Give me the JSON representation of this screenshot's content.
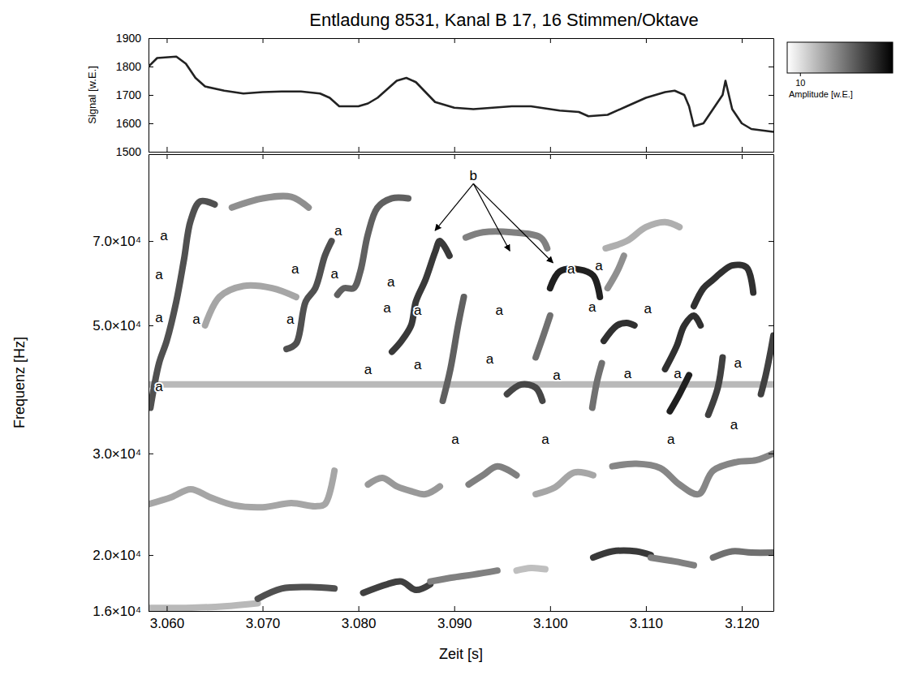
{
  "chart_data": [
    {
      "type": "line",
      "title": "Entladung 8531, Kanal B 17, 16 Stimmen/Oktave",
      "ylabel": "Signal [w.E.]",
      "xlim": [
        3.0581,
        3.1233
      ],
      "ylim": [
        1500,
        1900
      ],
      "xticks": [
        3.06,
        3.07,
        3.08,
        3.09,
        3.1,
        3.11,
        3.12
      ],
      "yticks": [
        1500,
        1600,
        1700,
        1800,
        1900
      ],
      "tick_labels": "y",
      "color": "#222222",
      "x": [
        3.0581,
        3.059,
        3.061,
        3.062,
        3.063,
        3.064,
        3.066,
        3.068,
        3.07,
        3.072,
        3.074,
        3.076,
        3.077,
        3.078,
        3.08,
        3.081,
        3.082,
        3.083,
        3.084,
        3.085,
        3.086,
        3.087,
        3.088,
        3.09,
        3.092,
        3.094,
        3.096,
        3.098,
        3.1,
        3.101,
        3.103,
        3.104,
        3.106,
        3.108,
        3.11,
        3.112,
        3.113,
        3.114,
        3.1145,
        3.115,
        3.116,
        3.117,
        3.118,
        3.1183,
        3.119,
        3.12,
        3.121,
        3.1233
      ],
      "values": [
        1800,
        1830,
        1835,
        1810,
        1760,
        1730,
        1715,
        1705,
        1710,
        1712,
        1712,
        1705,
        1690,
        1660,
        1660,
        1670,
        1690,
        1720,
        1750,
        1760,
        1745,
        1710,
        1675,
        1655,
        1650,
        1655,
        1660,
        1660,
        1650,
        1645,
        1640,
        1625,
        1630,
        1660,
        1690,
        1710,
        1715,
        1700,
        1660,
        1590,
        1600,
        1650,
        1700,
        1750,
        1650,
        1600,
        1580,
        1570
      ]
    },
    {
      "type": "spectrogram",
      "xlabel": "Zeit [s]",
      "ylabel": "Frequenz [Hz]",
      "log": "y",
      "xlim": [
        3.0581,
        3.1233
      ],
      "ylim": [
        16000,
        99000
      ],
      "xticks": [
        {
          "value": 3.06,
          "label": "3.060"
        },
        {
          "value": 3.07,
          "label": "3.070"
        },
        {
          "value": 3.08,
          "label": "3.080"
        },
        {
          "value": 3.09,
          "label": "3.090"
        },
        {
          "value": 3.1,
          "label": "3.100"
        },
        {
          "value": 3.11,
          "label": "3.110"
        },
        {
          "value": 3.12,
          "label": "3.120"
        }
      ],
      "yticks": [
        {
          "value": 16000,
          "label": "1.6×10⁴"
        },
        {
          "value": 20000,
          "label": "2.0×10⁴"
        },
        {
          "value": 30000,
          "label": "3.0×10⁴"
        },
        {
          "value": 50000,
          "label": "5.0×10⁴"
        },
        {
          "value": 70000,
          "label": "7.0×10⁴"
        }
      ],
      "colorbar_range": [
        0,
        80
      ],
      "colorbar_ticks": [
        10
      ],
      "colorbar_label": "Amplitude [w.E.]",
      "tracks": [
        {
          "t": [
            3.0581,
            3.1233
          ],
          "f": [
            39500,
            39500
          ],
          "amplitude": 22
        },
        {
          "t": [
            3.0581,
            3.062,
            3.066,
            3.0695
          ],
          "f": [
            16200,
            16200,
            16300,
            16500
          ],
          "amplitude": 22
        },
        {
          "t": [
            3.0695,
            3.072,
            3.075,
            3.0775
          ],
          "f": [
            16800,
            17500,
            17600,
            17500
          ],
          "amplitude": 55
        },
        {
          "t": [
            3.0805,
            3.083,
            3.0845,
            3.086,
            3.0875
          ],
          "f": [
            17200,
            17800,
            18000,
            17400,
            17800
          ],
          "amplitude": 60
        },
        {
          "t": [
            3.0875,
            3.09,
            3.092,
            3.0945
          ],
          "f": [
            18000,
            18300,
            18500,
            18800
          ],
          "amplitude": 40
        },
        {
          "t": [
            3.0965,
            3.098,
            3.0995
          ],
          "f": [
            18800,
            19000,
            18900
          ],
          "amplitude": 20
        },
        {
          "t": [
            3.1045,
            3.1065,
            3.109,
            3.1105
          ],
          "f": [
            19800,
            20300,
            20300,
            20000
          ],
          "amplitude": 62
        },
        {
          "t": [
            3.1105,
            3.113,
            3.115
          ],
          "f": [
            19800,
            19500,
            19200
          ],
          "amplitude": 40
        },
        {
          "t": [
            3.117,
            3.119,
            3.121,
            3.1233
          ],
          "f": [
            19800,
            20300,
            20200,
            20200
          ],
          "amplitude": 45
        },
        {
          "t": [
            3.0581,
            3.0605,
            3.0625,
            3.0645,
            3.067,
            3.07,
            3.073,
            3.0755,
            3.0765,
            3.0775
          ],
          "f": [
            24500,
            25200,
            26000,
            25200,
            24400,
            24200,
            24600,
            24300,
            24500,
            28000
          ],
          "amplitude": 28
        },
        {
          "t": [
            3.081,
            3.0825,
            3.084,
            3.0855,
            3.087,
            3.0885
          ],
          "f": [
            26500,
            27200,
            26300,
            25800,
            25500,
            26300
          ],
          "amplitude": 32
        },
        {
          "t": [
            3.0915,
            3.093,
            3.0945,
            3.0965
          ],
          "f": [
            26500,
            27500,
            28500,
            27500
          ],
          "amplitude": 40
        },
        {
          "t": [
            3.0985,
            3.1005,
            3.1025,
            3.1045
          ],
          "f": [
            25500,
            26200,
            27800,
            27500
          ],
          "amplitude": 28
        },
        {
          "t": [
            3.1065,
            3.109,
            3.1115,
            3.1135,
            3.1155,
            3.117,
            3.1195,
            3.1215,
            3.1233
          ],
          "f": [
            28500,
            28800,
            28300,
            26500,
            25500,
            28000,
            29000,
            29200,
            30000
          ],
          "amplitude": 38
        },
        {
          "t": [
            3.0583,
            3.0592,
            3.06,
            3.061,
            3.0618,
            3.0625,
            3.0635,
            3.065
          ],
          "f": [
            36000,
            43000,
            47000,
            55000,
            65000,
            76000,
            82000,
            81000
          ],
          "amplitude": 55
        },
        {
          "t": [
            3.0668,
            3.07,
            3.073,
            3.0748
          ],
          "f": [
            80000,
            83000,
            83500,
            80000
          ],
          "amplitude": 35
        },
        {
          "t": [
            3.064,
            3.0655,
            3.068,
            3.071,
            3.0735
          ],
          "f": [
            50000,
            56000,
            58500,
            58000,
            56000
          ],
          "amplitude": 28
        },
        {
          "t": [
            3.0725,
            3.0735,
            3.0745,
            3.0755,
            3.0765,
            3.0772
          ],
          "f": [
            45500,
            46500,
            55000,
            58000,
            66000,
            70000
          ],
          "amplitude": 55
        },
        {
          "t": [
            3.0778,
            3.0785,
            3.0795,
            3.0802,
            3.081,
            3.082,
            3.0835,
            3.0852
          ],
          "f": [
            56500,
            58000,
            58000,
            62000,
            72000,
            80000,
            83000,
            83000
          ],
          "amplitude": 50
        },
        {
          "t": [
            3.0835,
            3.0845,
            3.0855,
            3.086,
            3.087,
            3.088,
            3.0885,
            3.0895
          ],
          "f": [
            45000,
            47000,
            50000,
            55000,
            60000,
            67000,
            70000,
            66000
          ],
          "amplitude": 62
        },
        {
          "t": [
            3.0888,
            3.0896,
            3.0904,
            3.091
          ],
          "f": [
            37000,
            42000,
            50000,
            56000
          ],
          "amplitude": 50
        },
        {
          "t": [
            3.0912,
            3.093,
            3.096,
            3.099,
            3.0997
          ],
          "f": [
            71000,
            72500,
            72500,
            71000,
            68000
          ],
          "amplitude": 40
        },
        {
          "t": [
            3.0955,
            3.097,
            3.0985,
            3.0992
          ],
          "f": [
            38000,
            39500,
            39000,
            37000
          ],
          "amplitude": 58
        },
        {
          "t": [
            3.0985,
            3.0993,
            3.1
          ],
          "f": [
            44000,
            48000,
            52000
          ],
          "amplitude": 45
        },
        {
          "t": [
            3.1,
            3.101,
            3.103,
            3.1045,
            3.1052
          ],
          "f": [
            58000,
            62000,
            62500,
            61000,
            56000
          ],
          "amplitude": 70
        },
        {
          "t": [
            3.1044,
            3.1049,
            3.1054
          ],
          "f": [
            36000,
            40000,
            43000
          ],
          "amplitude": 45
        },
        {
          "t": [
            3.1056,
            3.107,
            3.108,
            3.1088
          ],
          "f": [
            47000,
            50000,
            50500,
            50000
          ],
          "amplitude": 65
        },
        {
          "t": [
            3.1058,
            3.108,
            3.11,
            3.112,
            3.1135
          ],
          "f": [
            68000,
            70000,
            74000,
            75500,
            74000
          ],
          "amplitude": 25
        },
        {
          "t": [
            3.106,
            3.107,
            3.1077
          ],
          "f": [
            58000,
            62000,
            66000
          ],
          "amplitude": 35
        },
        {
          "t": [
            3.112,
            3.1132,
            3.114,
            3.115,
            3.1157
          ],
          "f": [
            42000,
            46000,
            50000,
            52000,
            50000
          ],
          "amplitude": 65
        },
        {
          "t": [
            3.1125,
            3.1135,
            3.1145
          ],
          "f": [
            35500,
            38000,
            41000
          ],
          "amplitude": 70
        },
        {
          "t": [
            3.115,
            3.116,
            3.117,
            3.118,
            3.119,
            3.1205,
            3.1212
          ],
          "f": [
            54000,
            58000,
            60000,
            62000,
            63500,
            63000,
            57000
          ],
          "amplitude": 65
        },
        {
          "t": [
            3.1165,
            3.1175,
            3.118
          ],
          "f": [
            35000,
            39000,
            44000
          ],
          "amplitude": 60
        },
        {
          "t": [
            3.122,
            3.1225,
            3.123,
            3.1233
          ],
          "f": [
            38000,
            41000,
            45000,
            48000
          ],
          "amplitude": 60
        }
      ],
      "annotations": [
        {
          "text": "a",
          "x": 3.0597,
          "y": 71600
        },
        {
          "text": "a",
          "x": 3.0592,
          "y": 61300
        },
        {
          "text": "a",
          "x": 3.0592,
          "y": 51500
        },
        {
          "text": "a",
          "x": 3.0592,
          "y": 39200
        },
        {
          "text": "a",
          "x": 3.0631,
          "y": 51300
        },
        {
          "text": "a",
          "x": 3.0729,
          "y": 51300
        },
        {
          "text": "a",
          "x": 3.0734,
          "y": 62700
        },
        {
          "text": "a",
          "x": 3.0779,
          "y": 73000
        },
        {
          "text": "a",
          "x": 3.0775,
          "y": 61500
        },
        {
          "text": "a",
          "x": 3.0834,
          "y": 59400
        },
        {
          "text": "a",
          "x": 3.083,
          "y": 53600
        },
        {
          "text": "a",
          "x": 3.081,
          "y": 41900
        },
        {
          "text": "a",
          "x": 3.0862,
          "y": 53100
        },
        {
          "text": "a",
          "x": 3.0862,
          "y": 42700
        },
        {
          "text": "a",
          "x": 3.0901,
          "y": 31700
        },
        {
          "text": "a",
          "x": 3.0937,
          "y": 43700
        },
        {
          "text": "a",
          "x": 3.0947,
          "y": 53100
        },
        {
          "text": "a",
          "x": 3.0995,
          "y": 31700
        },
        {
          "text": "a",
          "x": 3.1007,
          "y": 41000
        },
        {
          "text": "a",
          "x": 3.1022,
          "y": 62700
        },
        {
          "text": "a",
          "x": 3.1051,
          "y": 63500
        },
        {
          "text": "a",
          "x": 3.1044,
          "y": 53700
        },
        {
          "text": "a",
          "x": 3.1102,
          "y": 53400
        },
        {
          "text": "a",
          "x": 3.1081,
          "y": 41200
        },
        {
          "text": "a",
          "x": 3.1133,
          "y": 41200
        },
        {
          "text": "a",
          "x": 3.1126,
          "y": 31700
        },
        {
          "text": "a",
          "x": 3.1196,
          "y": 43000
        },
        {
          "text": "a",
          "x": 3.1192,
          "y": 33600
        },
        {
          "text": "b",
          "x": 3.092,
          "y": 90900,
          "arrows": [
            {
              "x": 3.088,
              "y": 73000
            },
            {
              "x": 3.0958,
              "y": 67300
            },
            {
              "x": 3.1003,
              "y": 64200
            }
          ]
        }
      ]
    }
  ]
}
